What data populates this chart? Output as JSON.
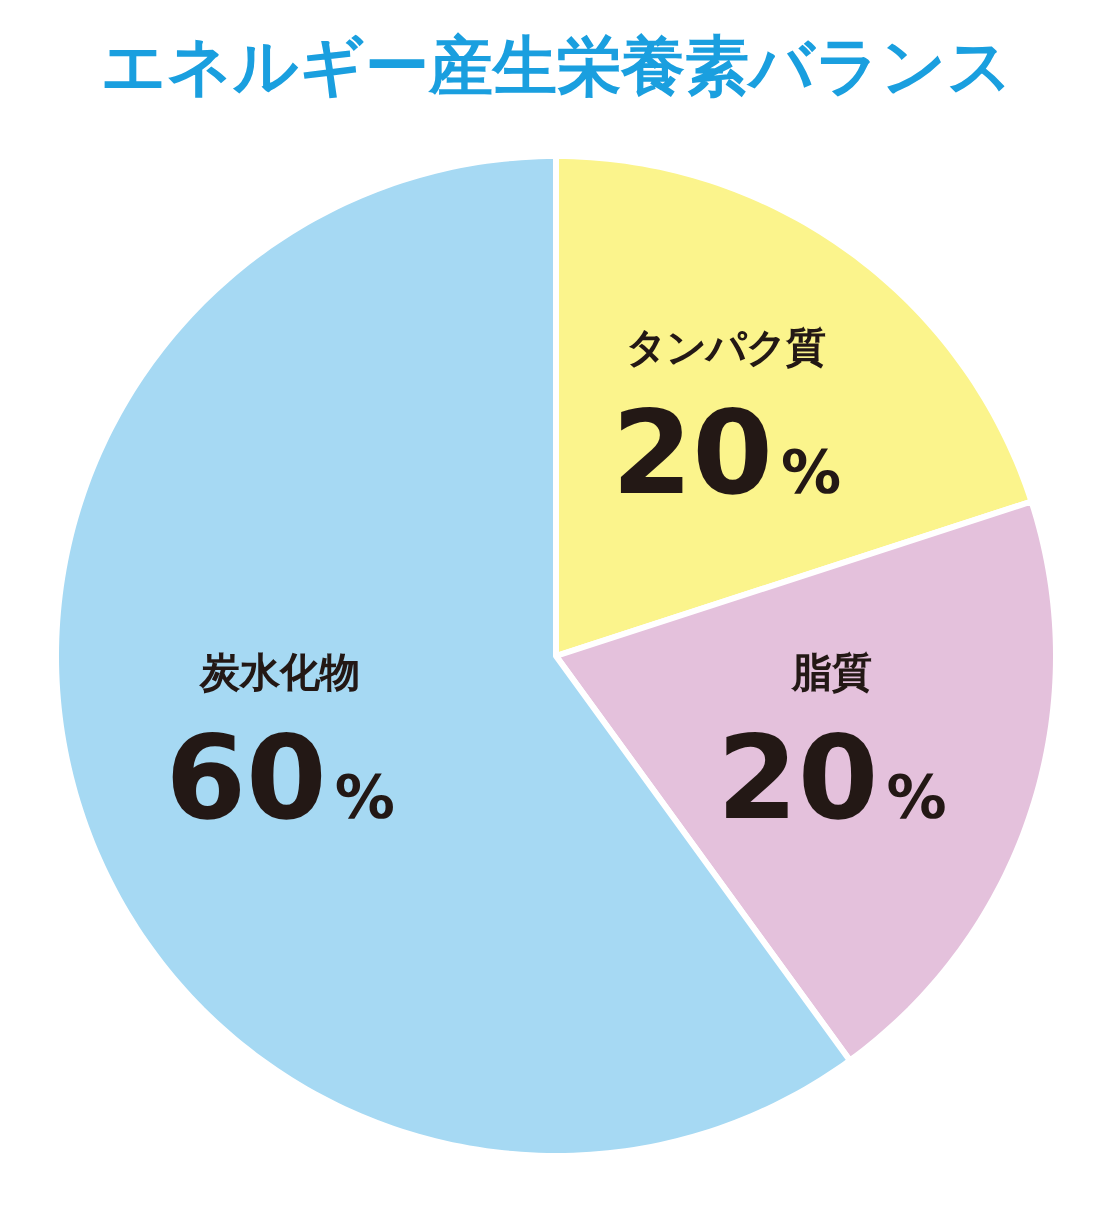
{
  "chart_data": {
    "type": "pie",
    "title": "エネルギー産生栄養素バランス",
    "categories": [
      "タンパク質",
      "脂質",
      "炭水化物"
    ],
    "values": [
      20,
      20,
      60
    ],
    "value_labels": [
      "20%",
      "20%",
      "60%"
    ],
    "colors": [
      "#fbf48c",
      "#e4c1dc",
      "#a6d9f3"
    ]
  }
}
